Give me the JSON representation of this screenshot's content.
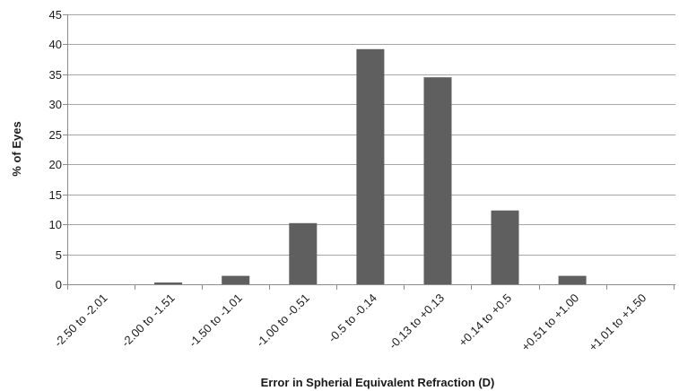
{
  "chart_data": {
    "type": "bar",
    "categories": [
      "-2.50 to -2.01",
      "-2.00 to -1.51",
      "-1.50 to -1.01",
      "-1.00 to -0.51",
      "-0.5 to -0.14",
      "-0.13 to +0.13",
      "+0.14 to +0.5",
      "+0.51 to +1.00",
      "+1.01 to +1.50"
    ],
    "values": [
      0,
      0.3,
      1.4,
      10.2,
      39.2,
      34.5,
      12.3,
      1.4,
      0
    ],
    "title": "",
    "xlabel": "Error in Spherial Equivalent Refraction  (D)",
    "ylabel": "% of Eyes",
    "ylim": [
      0,
      45
    ],
    "yticks": [
      0,
      5,
      10,
      15,
      20,
      25,
      30,
      35,
      40,
      45
    ],
    "grid": true,
    "legend": "none",
    "colors": {
      "bar": "#5f5f5f",
      "grid": "#a6a6a6",
      "axis": "#8c8c8c",
      "text": "#1a1a1a"
    }
  }
}
